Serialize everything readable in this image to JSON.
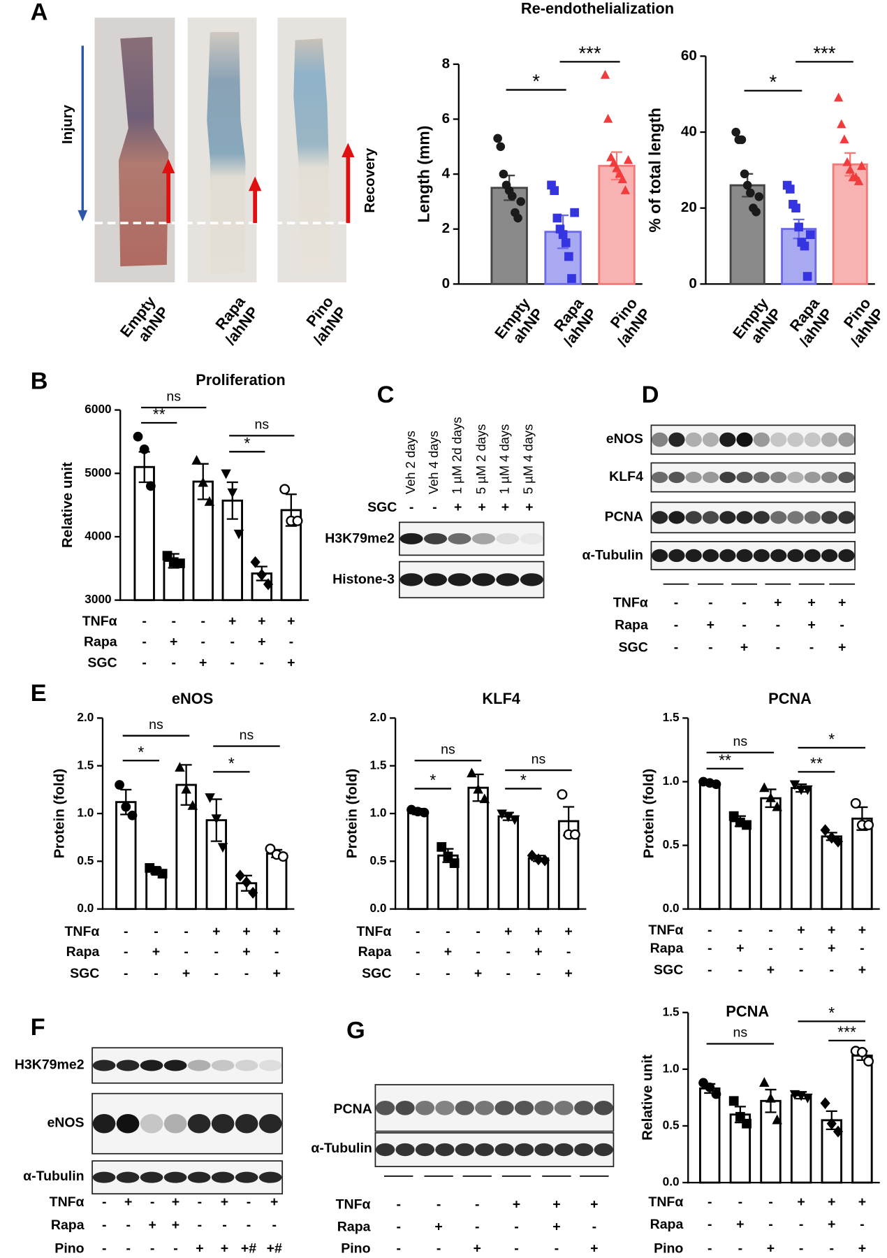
{
  "figure": {
    "panel_labels": [
      "A",
      "B",
      "C",
      "D",
      "E",
      "F",
      "G"
    ],
    "section_title": "Re-endothelialization",
    "photos": {
      "labels": [
        "Empty\nahNP",
        "Rapa\n/ahNP",
        "Pino\n/ahNP"
      ],
      "injury": "Injury",
      "recovery": "Recovery"
    },
    "blot_c": {
      "lanes": [
        "Veh 2 days",
        "Veh 4 days",
        "1 µM 2d days",
        "5 µM 2 days",
        "1 µM 4 days",
        "5 µM 4 days"
      ],
      "conditions": [
        {
          "name": "SGC",
          "values": [
            "-",
            "-",
            "+",
            "+",
            "+",
            "+"
          ]
        }
      ],
      "rows": [
        "H3K79me2",
        "Histone-3"
      ]
    },
    "blot_d": {
      "rows": [
        "eNOS",
        "KLF4",
        "PCNA",
        "α-Tubulin"
      ],
      "conditions": [
        {
          "name": "TNFα",
          "values": [
            "-",
            "-",
            "-",
            "+",
            "+",
            "+"
          ]
        },
        {
          "name": "Rapa",
          "values": [
            "-",
            "+",
            "-",
            "-",
            "+",
            "-"
          ]
        },
        {
          "name": "SGC",
          "values": [
            "-",
            "-",
            "+",
            "-",
            "-",
            "+"
          ]
        }
      ]
    },
    "blot_f": {
      "rows": [
        "H3K79me2",
        "eNOS",
        "α-Tubulin"
      ],
      "conditions": [
        {
          "name": "TNFα",
          "values": [
            "-",
            "+",
            "-",
            "+",
            "-",
            "+",
            "-",
            "+"
          ]
        },
        {
          "name": "Rapa",
          "values": [
            "-",
            "-",
            "+",
            "+",
            "-",
            "-",
            "-",
            "-"
          ]
        },
        {
          "name": "Pino",
          "values": [
            "-",
            "-",
            "-",
            "-",
            "+",
            "+",
            "+#",
            "+#"
          ]
        }
      ]
    },
    "blot_g": {
      "rows": [
        "PCNA",
        "α-Tubulin"
      ],
      "conditions": [
        {
          "name": "TNFα",
          "values": [
            "-",
            "-",
            "-",
            "+",
            "+",
            "+"
          ]
        },
        {
          "name": "Rapa",
          "values": [
            "-",
            "+",
            "-",
            "-",
            "+",
            "-"
          ]
        },
        {
          "name": "Pino",
          "values": [
            "-",
            "-",
            "+",
            "-",
            "-",
            "+"
          ]
        }
      ]
    }
  },
  "chart_data": [
    {
      "type": "bar",
      "ylabel": "Length (mm)",
      "categories": [
        "Empty\nahNP",
        "Rapa\n/ahNP",
        "Pino\n/ahNP"
      ],
      "values": [
        3.5,
        1.9,
        4.3
      ],
      "errors": [
        0.45,
        0.6,
        0.5
      ],
      "points": [
        [
          5.3,
          5.0,
          4.0,
          3.6,
          3.4,
          3.2,
          2.6,
          2.4,
          3.0
        ],
        [
          3.6,
          3.4,
          2.4,
          2.0,
          1.8,
          1.5,
          1.0,
          0.2,
          2.6
        ],
        [
          7.6,
          6.0,
          4.6,
          4.4,
          4.2,
          4.0,
          3.8,
          3.4,
          4.5
        ]
      ],
      "colors": [
        "#8a8a8a",
        "#a9a9f2",
        "#f8b2b2"
      ],
      "edge_colors": [
        "#444444",
        "#6a6ae6",
        "#f07a7a"
      ],
      "point_colors": [
        "#1a1a1a",
        "#3434e0",
        "#f03c3c"
      ],
      "markers": [
        "circle",
        "square",
        "triangle"
      ],
      "ylim": [
        0,
        8
      ],
      "yticks": [
        0,
        2,
        4,
        6,
        8
      ],
      "significance": [
        {
          "between": [
            0,
            1
          ],
          "label": "*"
        },
        {
          "between": [
            1,
            2
          ],
          "label": "***"
        }
      ]
    },
    {
      "type": "bar",
      "ylabel": "% of total length",
      "categories": [
        "Empty\nahNP",
        "Rapa\n/ahNP",
        "Pino\n/ahNP"
      ],
      "values": [
        26,
        14.5,
        31.5
      ],
      "errors": [
        3,
        2.5,
        3
      ],
      "points": [
        [
          40,
          38,
          38,
          29,
          26,
          24,
          20,
          19,
          23
        ],
        [
          26,
          25,
          21,
          20,
          15,
          11,
          10,
          2,
          13
        ],
        [
          49,
          42,
          38,
          32,
          30,
          28,
          28,
          27,
          31
        ]
      ],
      "colors": [
        "#8a8a8a",
        "#a9a9f2",
        "#f8b2b2"
      ],
      "edge_colors": [
        "#444444",
        "#6a6ae6",
        "#f07a7a"
      ],
      "point_colors": [
        "#1a1a1a",
        "#3434e0",
        "#f03c3c"
      ],
      "markers": [
        "circle",
        "square",
        "triangle"
      ],
      "ylim": [
        0,
        60
      ],
      "yticks": [
        0,
        20,
        40,
        60
      ],
      "significance": [
        {
          "between": [
            0,
            1
          ],
          "label": "*"
        },
        {
          "between": [
            1,
            2
          ],
          "label": "***"
        }
      ]
    },
    {
      "type": "bar",
      "title": "Proliferation",
      "ylabel": "Relative unit",
      "values": [
        5100,
        3620,
        4870,
        4570,
        3420,
        4420
      ],
      "errors": [
        240,
        110,
        280,
        290,
        110,
        250
      ],
      "points": [
        [
          5580,
          5380,
          4800
        ],
        [
          3700,
          3600,
          3580
        ],
        [
          5200,
          4850,
          4550
        ],
        [
          5000,
          4700,
          4050
        ],
        [
          3600,
          3400,
          3250
        ],
        [
          4750,
          4250,
          4250
        ]
      ],
      "colors": [
        "#ffffff",
        "#ffffff",
        "#ffffff",
        "#ffffff",
        "#ffffff",
        "#ffffff"
      ],
      "edge_colors": [
        "#000000",
        "#000000",
        "#000000",
        "#000000",
        "#000000",
        "#000000"
      ],
      "point_colors": [
        "#000000",
        "#000000",
        "#000000",
        "#000000",
        "#000000",
        "#000000"
      ],
      "markers": [
        "circle",
        "square",
        "triangle",
        "triangle-down",
        "diamond",
        "circle-open"
      ],
      "ylim": [
        3000,
        6000
      ],
      "yticks": [
        3000,
        4000,
        5000,
        6000
      ],
      "significance": [
        {
          "between": [
            0,
            2
          ],
          "label": "ns"
        },
        {
          "between": [
            0,
            1
          ],
          "label": "**"
        },
        {
          "between": [
            3,
            5
          ],
          "label": "ns"
        },
        {
          "between": [
            3,
            4
          ],
          "label": "*"
        }
      ],
      "conditions": [
        {
          "name": "TNFα",
          "values": [
            "-",
            "-",
            "-",
            "+",
            "+",
            "+"
          ]
        },
        {
          "name": "Rapa",
          "values": [
            "-",
            "+",
            "-",
            "-",
            "+",
            "-"
          ]
        },
        {
          "name": "SGC",
          "values": [
            "-",
            "-",
            "+",
            "-",
            "-",
            "+"
          ]
        }
      ]
    },
    {
      "type": "bar",
      "title": "eNOS",
      "ylabel": "Protein (fold)",
      "values": [
        1.12,
        0.4,
        1.3,
        0.93,
        0.27,
        0.58
      ],
      "errors": [
        0.13,
        0.03,
        0.21,
        0.22,
        0.08,
        0.04
      ],
      "points": [
        [
          1.3,
          1.07,
          0.98
        ],
        [
          0.43,
          0.4,
          0.37
        ],
        [
          1.48,
          1.25,
          1.08
        ],
        [
          1.17,
          0.95,
          0.65
        ],
        [
          0.35,
          0.28,
          0.17
        ],
        [
          0.63,
          0.57,
          0.55
        ]
      ],
      "colors": [
        "#ffffff",
        "#ffffff",
        "#ffffff",
        "#ffffff",
        "#ffffff",
        "#ffffff"
      ],
      "edge_colors": [
        "#000000",
        "#000000",
        "#000000",
        "#000000",
        "#000000",
        "#000000"
      ],
      "point_colors": [
        "#000000",
        "#000000",
        "#000000",
        "#000000",
        "#000000",
        "#000000"
      ],
      "markers": [
        "circle",
        "square",
        "triangle",
        "triangle-down",
        "diamond",
        "circle-open"
      ],
      "ylim": [
        0,
        2
      ],
      "yticks": [
        {
          "value": 0,
          "label": "0.0"
        },
        0.5,
        {
          "value": 1,
          "label": "1.0"
        },
        1.5,
        {
          "value": 2,
          "label": "2.0"
        }
      ],
      "significance": [
        {
          "between": [
            0,
            2
          ],
          "label": "ns"
        },
        {
          "between": [
            0,
            1
          ],
          "label": "*"
        },
        {
          "between": [
            3,
            5
          ],
          "label": "ns"
        },
        {
          "between": [
            3,
            4
          ],
          "label": "*"
        }
      ],
      "conditions": [
        {
          "name": "TNFα",
          "values": [
            "-",
            "-",
            "-",
            "+",
            "+",
            "+"
          ]
        },
        {
          "name": "Rapa",
          "values": [
            "-",
            "+",
            "-",
            "-",
            "+",
            "-"
          ]
        },
        {
          "name": "SGC",
          "values": [
            "-",
            "-",
            "+",
            "-",
            "-",
            "+"
          ]
        }
      ]
    },
    {
      "type": "bar",
      "title": "KLF4",
      "ylabel": "Protein (fold)",
      "values": [
        1.02,
        0.56,
        1.27,
        0.97,
        0.53,
        0.92
      ],
      "errors": [
        0.03,
        0.07,
        0.14,
        0.04,
        0.03,
        0.15
      ],
      "points": [
        [
          1.04,
          1.02,
          1.01
        ],
        [
          0.65,
          0.55,
          0.48
        ],
        [
          1.42,
          1.25,
          1.15
        ],
        [
          1.0,
          0.97,
          0.94
        ],
        [
          0.56,
          0.52,
          0.51
        ],
        [
          1.2,
          0.78,
          0.78
        ]
      ],
      "colors": [
        "#ffffff",
        "#ffffff",
        "#ffffff",
        "#ffffff",
        "#ffffff",
        "#ffffff"
      ],
      "edge_colors": [
        "#000000",
        "#000000",
        "#000000",
        "#000000",
        "#000000",
        "#000000"
      ],
      "point_colors": [
        "#000000",
        "#000000",
        "#000000",
        "#000000",
        "#000000",
        "#000000"
      ],
      "markers": [
        "circle",
        "square",
        "triangle",
        "triangle-down",
        "diamond",
        "circle-open"
      ],
      "ylim": [
        0,
        2
      ],
      "yticks": [
        {
          "value": 0,
          "label": "0.0"
        },
        0.5,
        {
          "value": 1,
          "label": "1.0"
        },
        1.5,
        {
          "value": 2,
          "label": "2.0"
        }
      ],
      "significance": [
        {
          "between": [
            0,
            2
          ],
          "label": "ns"
        },
        {
          "between": [
            0,
            1
          ],
          "label": "*"
        },
        {
          "between": [
            3,
            5
          ],
          "label": "ns"
        },
        {
          "between": [
            3,
            4
          ],
          "label": "*"
        }
      ],
      "conditions": [
        {
          "name": "TNFα",
          "values": [
            "-",
            "-",
            "-",
            "+",
            "+",
            "+"
          ]
        },
        {
          "name": "Rapa",
          "values": [
            "-",
            "+",
            "-",
            "-",
            "+",
            "-"
          ]
        },
        {
          "name": "SGC",
          "values": [
            "-",
            "-",
            "+",
            "-",
            "-",
            "+"
          ]
        }
      ]
    },
    {
      "type": "bar",
      "title": "PCNA",
      "ylabel": "Protein (fold)",
      "values": [
        0.99,
        0.69,
        0.87,
        0.95,
        0.57,
        0.71
      ],
      "errors": [
        0.01,
        0.04,
        0.07,
        0.03,
        0.03,
        0.09
      ],
      "points": [
        [
          1.0,
          0.99,
          0.98
        ],
        [
          0.73,
          0.68,
          0.66
        ],
        [
          0.95,
          0.87,
          0.8
        ],
        [
          0.98,
          0.94,
          0.94
        ],
        [
          0.62,
          0.56,
          0.53
        ],
        [
          0.83,
          0.66,
          0.66
        ]
      ],
      "colors": [
        "#ffffff",
        "#ffffff",
        "#ffffff",
        "#ffffff",
        "#ffffff",
        "#ffffff"
      ],
      "edge_colors": [
        "#000000",
        "#000000",
        "#000000",
        "#000000",
        "#000000",
        "#000000"
      ],
      "point_colors": [
        "#000000",
        "#000000",
        "#000000",
        "#000000",
        "#000000",
        "#000000"
      ],
      "markers": [
        "circle",
        "square",
        "triangle",
        "triangle-down",
        "diamond",
        "circle-open"
      ],
      "ylim": [
        0,
        1.5
      ],
      "yticks": [
        {
          "value": 0,
          "label": "0.0"
        },
        0.5,
        {
          "value": 1,
          "label": "1.0"
        },
        1.5
      ],
      "significance": [
        {
          "between": [
            0,
            2
          ],
          "label": "ns"
        },
        {
          "between": [
            0,
            1
          ],
          "label": "**"
        },
        {
          "between": [
            3,
            5
          ],
          "label": "*"
        },
        {
          "between": [
            3,
            4
          ],
          "label": "**"
        }
      ],
      "conditions": [
        {
          "name": "TNFα",
          "values": [
            "-",
            "-",
            "-",
            "+",
            "+",
            "+"
          ]
        },
        {
          "name": "Rapa",
          "values": [
            "-",
            "+",
            "-",
            "-",
            "+",
            "-"
          ]
        },
        {
          "name": "SGC",
          "values": [
            "-",
            "-",
            "+",
            "-",
            "-",
            "+"
          ]
        }
      ]
    },
    {
      "type": "bar",
      "title": "PCNA",
      "ylabel": "Relative unit",
      "values": [
        0.83,
        0.6,
        0.72,
        0.77,
        0.55,
        1.12
      ],
      "errors": [
        0.04,
        0.07,
        0.1,
        0.03,
        0.08,
        0.04
      ],
      "points": [
        [
          0.88,
          0.84,
          0.78
        ],
        [
          0.72,
          0.58,
          0.52
        ],
        [
          0.88,
          0.74,
          0.55
        ],
        [
          0.78,
          0.77,
          0.75
        ],
        [
          0.7,
          0.52,
          0.45
        ],
        [
          1.16,
          1.15,
          1.07
        ]
      ],
      "colors": [
        "#ffffff",
        "#ffffff",
        "#ffffff",
        "#ffffff",
        "#ffffff",
        "#ffffff"
      ],
      "edge_colors": [
        "#000000",
        "#000000",
        "#000000",
        "#000000",
        "#000000",
        "#000000"
      ],
      "point_colors": [
        "#000000",
        "#000000",
        "#000000",
        "#000000",
        "#000000",
        "#000000"
      ],
      "markers": [
        "circle",
        "square",
        "triangle",
        "triangle-down",
        "diamond",
        "circle-open"
      ],
      "ylim": [
        0,
        1.5
      ],
      "yticks": [
        {
          "value": 0,
          "label": "0.0"
        },
        0.5,
        {
          "value": 1,
          "label": "1.0"
        },
        1.5
      ],
      "significance": [
        {
          "between": [
            0,
            2
          ],
          "label": "ns"
        },
        {
          "between": [
            3,
            5
          ],
          "label": "*"
        },
        {
          "between": [
            4,
            5
          ],
          "label": "***"
        }
      ],
      "conditions": [
        {
          "name": "TNFα",
          "values": [
            "-",
            "-",
            "-",
            "+",
            "+",
            "+"
          ]
        },
        {
          "name": "Rapa",
          "values": [
            "-",
            "+",
            "-",
            "-",
            "+",
            "-"
          ]
        },
        {
          "name": "Pino",
          "values": [
            "-",
            "-",
            "+",
            "-",
            "-",
            "+"
          ]
        }
      ]
    }
  ]
}
